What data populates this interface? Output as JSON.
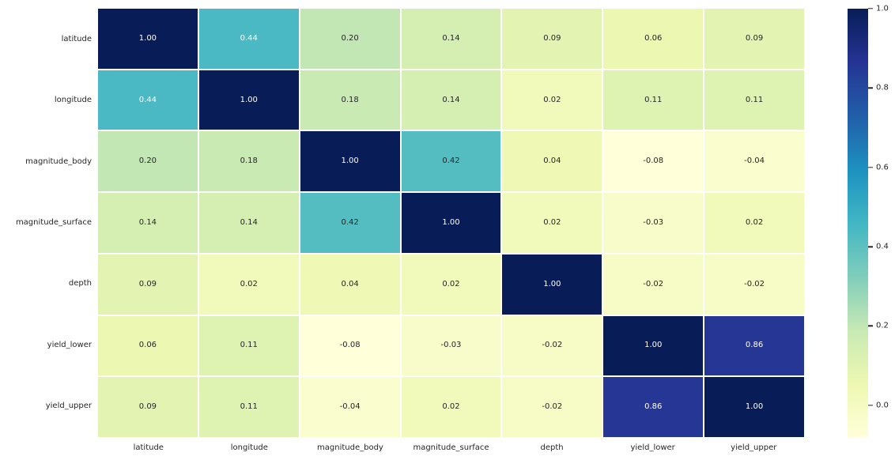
{
  "chart_data": {
    "type": "heatmap",
    "title": "",
    "xlabel": "",
    "ylabel": "",
    "labels": [
      "latitude",
      "longitude",
      "magnitude_body",
      "magnitude_surface",
      "depth",
      "yield_lower",
      "yield_upper"
    ],
    "matrix": [
      [
        1.0,
        0.44,
        0.2,
        0.14,
        0.09,
        0.06,
        0.09
      ],
      [
        0.44,
        1.0,
        0.18,
        0.14,
        0.02,
        0.11,
        0.11
      ],
      [
        0.2,
        0.18,
        1.0,
        0.42,
        0.04,
        -0.08,
        -0.04
      ],
      [
        0.14,
        0.14,
        0.42,
        1.0,
        0.02,
        -0.03,
        0.02
      ],
      [
        0.09,
        0.02,
        0.04,
        0.02,
        1.0,
        -0.02,
        -0.02
      ],
      [
        0.06,
        0.11,
        -0.08,
        -0.03,
        -0.02,
        1.0,
        0.86
      ],
      [
        0.09,
        0.11,
        -0.04,
        0.02,
        -0.02,
        0.86,
        1.0
      ]
    ],
    "annotation_decimals": 2,
    "vmin": -0.08,
    "vmax": 1.0,
    "colormap": {
      "name": "YlGnBu",
      "stops": [
        "#ffffd9",
        "#edf8b1",
        "#c7e9b4",
        "#7fcdbb",
        "#41b6c4",
        "#1d91c0",
        "#225ea8",
        "#253494",
        "#081d58"
      ]
    },
    "colorbar": {
      "position": "right",
      "ticks": [
        "1.0",
        "0.8",
        "0.6",
        "0.4",
        "0.2",
        "0.0"
      ],
      "tick_values": [
        1.0,
        0.8,
        0.6,
        0.4,
        0.2,
        0.0
      ]
    },
    "grid_line_color": "#ffffff",
    "annotation_text_light": "#ffffff",
    "annotation_text_dark": "#262626",
    "axis_label_color": "#262626",
    "background_color": "#ffffff",
    "legend": "none",
    "gridlines": false
  }
}
